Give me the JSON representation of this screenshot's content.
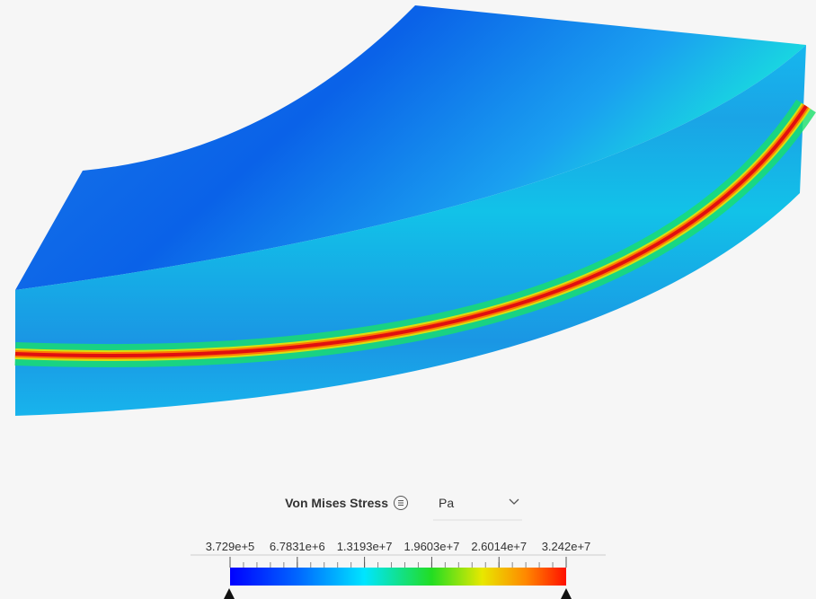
{
  "legend": {
    "title": "Von Mises Stress",
    "unit": "Pa",
    "ticks": [
      {
        "value": 372900,
        "label": "3.729e+5"
      },
      {
        "value": 6783100,
        "label": "6.7831e+6"
      },
      {
        "value": 13193000,
        "label": "1.3193e+7"
      },
      {
        "value": 19603000,
        "label": "1.9603e+7"
      },
      {
        "value": 26014000,
        "label": "2.6014e+7"
      },
      {
        "value": 32420000,
        "label": "3.242e+7"
      }
    ]
  }
}
